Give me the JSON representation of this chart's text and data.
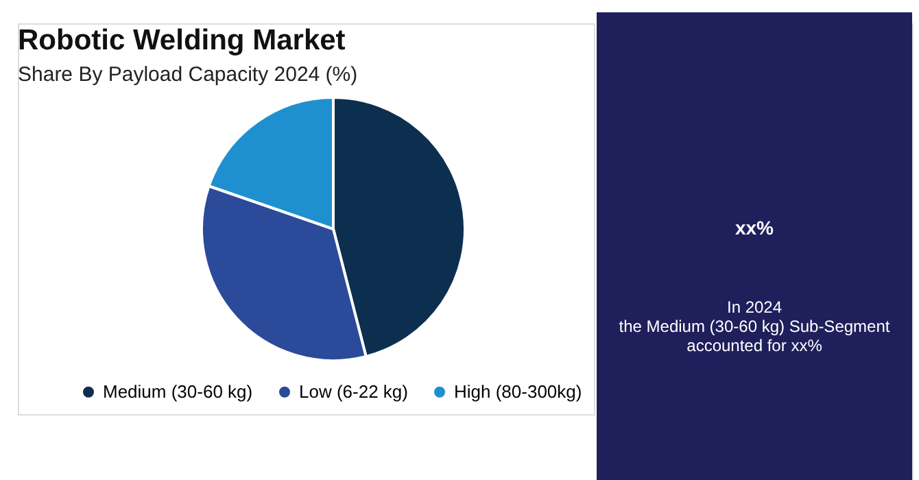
{
  "chart_data": {
    "type": "pie",
    "title": "Robotic Welding Market",
    "subtitle": "Share By Payload Capacity 2024 (%)",
    "categories": [
      "Medium (30-60 kg)",
      "Low (6-22 kg)",
      "High (80-300kg)"
    ],
    "values": [
      46,
      34.3,
      19.7
    ],
    "colors": [
      "#0d2f4f",
      "#2b4a9a",
      "#1e90d0"
    ],
    "legend": "bottom",
    "annotations": [
      "xx%",
      "In 2024\nthe Medium (30-60 kg) Sub-Segment\naccounted for xx%"
    ]
  }
}
